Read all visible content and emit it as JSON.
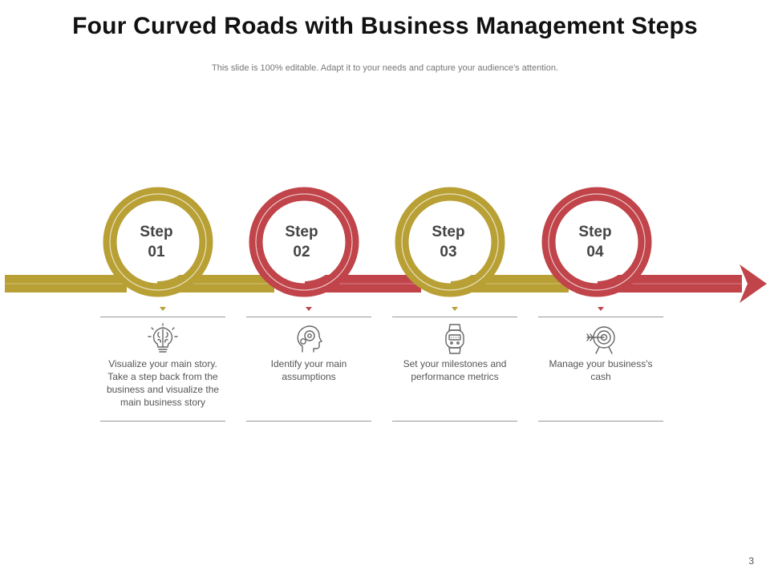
{
  "title": "Four Curved Roads with Business Management Steps",
  "subtitle": "This slide is 100% editable. Adapt it to your needs and capture your audience's attention.",
  "colors": {
    "gold": "#b8a035",
    "red": "#c0444a"
  },
  "steps": [
    {
      "line1": "Step",
      "line2": "01",
      "icon": "brain-lightbulb-icon",
      "color": "gold",
      "description": "Visualize your main story. Take a step back from the business and visualize the main business story"
    },
    {
      "line1": "Step",
      "line2": "02",
      "icon": "head-gear-icon",
      "color": "red",
      "description": "Identify your main assumptions"
    },
    {
      "line1": "Step",
      "line2": "03",
      "icon": "smartwatch-icon",
      "color": "gold",
      "description": "Set your milestones and performance metrics"
    },
    {
      "line1": "Step",
      "line2": "04",
      "icon": "target-arrow-icon",
      "color": "red",
      "description": "Manage your business's cash"
    }
  ],
  "page_number": "3"
}
